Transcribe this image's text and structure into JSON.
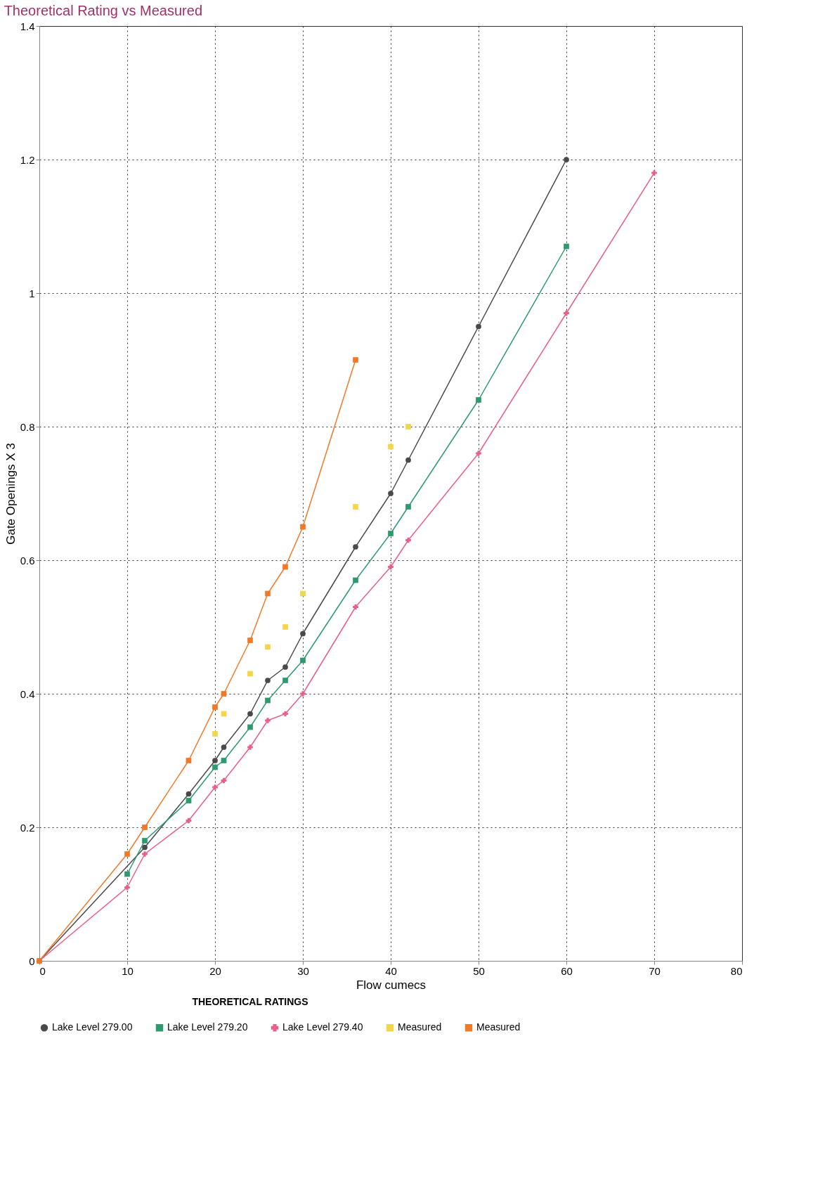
{
  "chart_data": {
    "type": "line",
    "title": "Theoretical Rating vs Measured",
    "xlabel": "Flow cumecs",
    "ylabel": "Gate Openings X 3",
    "xlim": [
      0,
      80
    ],
    "xticks": [
      0,
      10,
      20,
      30,
      40,
      50,
      60,
      70,
      80
    ],
    "ylim": [
      0,
      1.4
    ],
    "yticks": [
      0,
      0.2,
      0.4,
      0.6,
      0.8,
      1,
      1.2,
      1.4
    ],
    "grid": true,
    "legend": "bottom",
    "line_style": "solid",
    "annotations": [
      "THEORETICAL RATINGS"
    ],
    "series": [
      {
        "name": "Lake Level 279.00",
        "color": "#4a4a4a",
        "marker": "circle",
        "x": [
          0,
          12,
          17,
          20,
          21,
          24,
          26,
          28,
          30,
          36,
          40,
          42,
          50,
          60
        ],
        "values": [
          0,
          0.17,
          0.25,
          0.3,
          0.32,
          0.37,
          0.42,
          0.44,
          0.49,
          0.62,
          0.7,
          0.75,
          0.95,
          1.2
        ]
      },
      {
        "name": "Lake Level 279.20",
        "color": "#2e9a6e",
        "marker": "square",
        "x": [
          10,
          12,
          17,
          20,
          21,
          24,
          26,
          28,
          30,
          36,
          40,
          42,
          50,
          60
        ],
        "values": [
          0.13,
          0.18,
          0.24,
          0.29,
          0.3,
          0.35,
          0.39,
          0.42,
          0.45,
          0.57,
          0.64,
          0.68,
          0.84,
          1.07
        ]
      },
      {
        "name": "Lake Level 279.40",
        "color": "#e8608a",
        "marker": "cross",
        "x": [
          0,
          10,
          12,
          17,
          20,
          21,
          24,
          26,
          28,
          30,
          36,
          40,
          42,
          50,
          60,
          70
        ],
        "values": [
          0,
          0.11,
          0.16,
          0.21,
          0.26,
          0.27,
          0.32,
          0.36,
          0.37,
          0.4,
          0.53,
          0.59,
          0.63,
          0.76,
          0.97,
          1.18
        ]
      },
      {
        "name": "Measured",
        "type": "scatter",
        "color": "#f2d64b",
        "marker": "square",
        "x": [
          20,
          21,
          24,
          26,
          28,
          30,
          36,
          40,
          42
        ],
        "values": [
          0.34,
          0.37,
          0.43,
          0.47,
          0.5,
          0.55,
          0.68,
          0.77,
          0.8
        ]
      },
      {
        "name": "Measured",
        "color": "#f07a2a",
        "marker": "square",
        "x": [
          0,
          10,
          12,
          17,
          20,
          21,
          24,
          26,
          28,
          30,
          36
        ],
        "values": [
          0,
          0.16,
          0.2,
          0.3,
          0.38,
          0.4,
          0.48,
          0.55,
          0.59,
          0.65,
          0.9
        ]
      }
    ]
  }
}
